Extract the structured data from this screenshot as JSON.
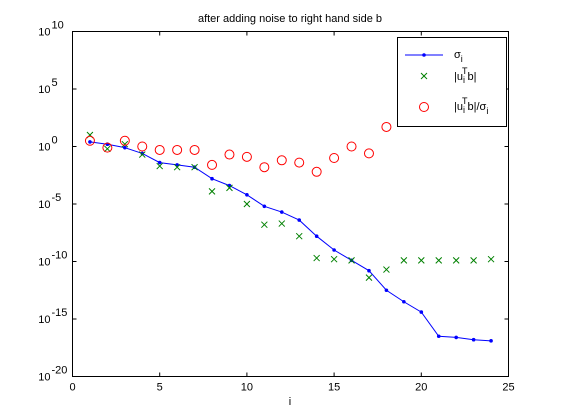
{
  "chart_data": {
    "type": "scatter",
    "title": "after adding noise to right hand side b",
    "xlabel": "i",
    "ylabel": "",
    "xlim": [
      0,
      25
    ],
    "ylim_log10": [
      -20,
      10
    ],
    "y_scale": "log",
    "grid": false,
    "legend_position": "top-right",
    "x_ticks": [
      "0",
      "5",
      "10",
      "15",
      "20",
      "25"
    ],
    "y_ticks": [
      {
        "base": "10",
        "exp": "10"
      },
      {
        "base": "10",
        "exp": "5"
      },
      {
        "base": "10",
        "exp": "0"
      },
      {
        "base": "10",
        "exp": "-5"
      },
      {
        "base": "10",
        "exp": "-10"
      },
      {
        "base": "10",
        "exp": "-15"
      },
      {
        "base": "10",
        "exp": "-20"
      }
    ],
    "legend": [
      {
        "main": "σ",
        "sub": "i"
      },
      {
        "pre": "|u",
        "sub": "i",
        "sup": "T",
        "post": "b|"
      },
      {
        "pre": "|u",
        "sub": "i",
        "sup": "T",
        "post": "b|/σ",
        "sub2": "i"
      }
    ],
    "colors": {
      "sigma": "#0000ff",
      "utb": "#008000",
      "ratio": "#ff0000"
    },
    "series": [
      {
        "key": "sigma",
        "marker": "dot-line",
        "x": [
          1,
          2,
          3,
          4,
          5,
          6,
          7,
          8,
          9,
          10,
          11,
          12,
          13,
          14,
          15,
          16,
          17,
          18,
          19,
          20,
          21,
          22,
          23,
          24
        ],
        "y_log10": [
          0.4,
          0.2,
          -0.1,
          -0.6,
          -1.4,
          -1.6,
          -1.8,
          -2.8,
          -3.4,
          -4.2,
          -5.2,
          -5.7,
          -6.4,
          -7.8,
          -9.0,
          -9.9,
          -10.8,
          -12.5,
          -13.5,
          -14.4,
          -16.5,
          -16.6,
          -16.8,
          -16.9
        ]
      },
      {
        "key": "utb",
        "marker": "x",
        "x": [
          1,
          2,
          3,
          4,
          5,
          6,
          7,
          8,
          9,
          10,
          11,
          12,
          13,
          14,
          15,
          16,
          17,
          18,
          19,
          20,
          21,
          22,
          23,
          24
        ],
        "y_log10": [
          1.0,
          -0.2,
          0.2,
          -0.7,
          -1.7,
          -1.8,
          -1.8,
          -3.9,
          -3.6,
          -5.0,
          -6.8,
          -6.7,
          -7.8,
          -9.7,
          -9.8,
          -9.9,
          -11.4,
          -10.7,
          -9.9,
          -9.9,
          -9.9,
          -9.9,
          -9.9,
          -9.8
        ]
      },
      {
        "key": "ratio",
        "marker": "circle",
        "x": [
          1,
          2,
          3,
          4,
          5,
          6,
          7,
          8,
          9,
          10,
          11,
          12,
          13,
          14,
          15,
          16,
          17,
          18,
          19
        ],
        "y_log10": [
          0.5,
          -0.1,
          0.5,
          0.0,
          -0.3,
          -0.3,
          -0.3,
          -1.6,
          -0.7,
          -0.9,
          -1.8,
          -1.2,
          -1.4,
          -2.2,
          -1.0,
          0.0,
          -0.6,
          1.7,
          3.3
        ]
      }
    ]
  }
}
